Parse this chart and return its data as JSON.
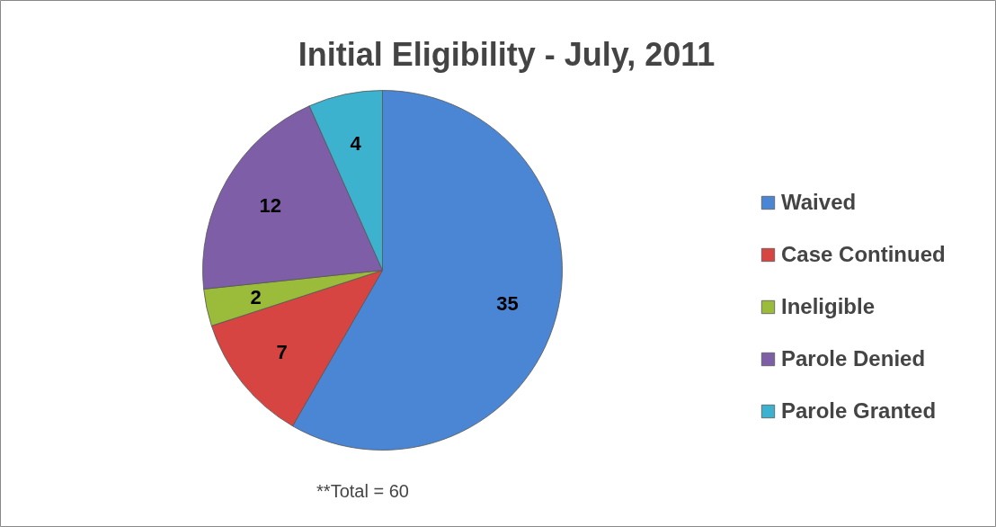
{
  "chart_data": {
    "type": "pie",
    "title": "Initial Eligibility - July, 2011",
    "categories": [
      "Waived",
      "Case Continued",
      "Ineligible",
      "Parole Denied",
      "Parole Granted"
    ],
    "values": [
      35,
      7,
      2,
      12,
      4
    ],
    "colors": [
      "#4a86d4",
      "#d64541",
      "#9bbb3b",
      "#7f5ea8",
      "#3cb2cf"
    ],
    "data_labels": true,
    "legend": "right",
    "annotations": [
      "**Total = 60"
    ]
  }
}
